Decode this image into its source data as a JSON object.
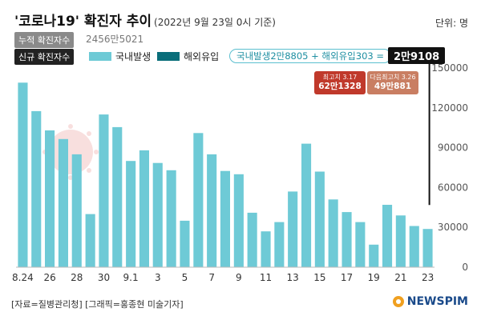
{
  "header": {
    "title": "'코로나19' 확진자 추이",
    "subtitle": "(2022년 9월 23일 0시 기준)",
    "unit": "단위: 명"
  },
  "summary": {
    "cumulative_label": "누적 확진자수",
    "cumulative_value": "2456만5021",
    "new_label": "신규 확진자수",
    "legend_domestic": "국내발생",
    "legend_overseas": "해외유입",
    "formula": "국내발생2만8805 + 해외유입303 =",
    "total": "2만9108"
  },
  "records": {
    "highest_date": "최고치 3.17",
    "highest_value": "62만1328",
    "second_date": "다음최고치 3.26",
    "second_value": "49만881"
  },
  "footer": {
    "source": "[자료=질병관리청] [그래픽=홍종현 미술기자]",
    "logo": "NEWSPIM"
  },
  "colors": {
    "domestic": "#6ecad6",
    "overseas": "#0a6e7a",
    "highest": "#c0392b",
    "second": "#c97e62"
  },
  "chart_data": {
    "type": "bar",
    "categories": [
      "8.24",
      "25",
      "26",
      "27",
      "28",
      "29",
      "30",
      "31",
      "9.1",
      "2",
      "3",
      "4",
      "5",
      "6",
      "7",
      "8",
      "9",
      "10",
      "11",
      "12",
      "13",
      "14",
      "15",
      "16",
      "17",
      "18",
      "19",
      "20",
      "21",
      "22",
      "23"
    ],
    "tick_labels": [
      "8.24",
      "",
      "26",
      "",
      "28",
      "",
      "30",
      "",
      "9.1",
      "",
      "3",
      "",
      "5",
      "",
      "7",
      "",
      "9",
      "",
      "11",
      "",
      "13",
      "",
      "15",
      "",
      "17",
      "",
      "19",
      "",
      "21",
      "",
      "23"
    ],
    "series": [
      {
        "name": "국내발생",
        "values": [
          139000,
          117500,
          103000,
          96500,
          85000,
          40000,
          115000,
          105500,
          80000,
          88000,
          78500,
          73000,
          35000,
          101000,
          85000,
          72500,
          70000,
          41000,
          27000,
          34000,
          57000,
          93000,
          72000,
          51000,
          41500,
          34000,
          17000,
          47000,
          39000,
          31000,
          28805
        ]
      }
    ],
    "ylim": [
      0,
      150000
    ],
    "yticks": [
      0,
      30000,
      60000,
      90000,
      120000,
      150000
    ],
    "ytick_labels": [
      "0",
      "30000",
      "60000",
      "90000",
      "120000",
      "150000"
    ],
    "xlabel": "",
    "ylabel": "",
    "grid": false,
    "legend": "top-left"
  }
}
